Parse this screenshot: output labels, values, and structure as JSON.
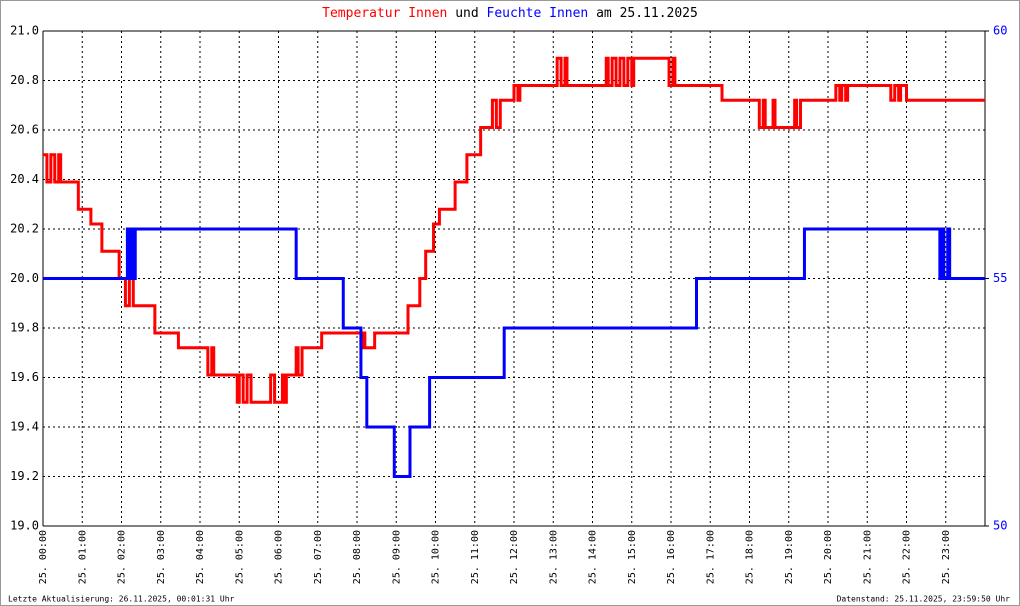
{
  "chart_data": {
    "type": "line",
    "step": "post",
    "title_join": "und",
    "title_suffix": "am 25.11.2025",
    "footer_left": "Letzte Aktualisierung: 26.11.2025, 00:01:31 Uhr",
    "footer_right": "Datenstand: 25.11.2025, 23:59:50 Uhr",
    "grid": true,
    "xlim": [
      0,
      24
    ],
    "xticks": [
      {
        "value": 0,
        "label": "25. 00:00"
      },
      {
        "value": 1,
        "label": "25. 01:00"
      },
      {
        "value": 2,
        "label": "25. 02:00"
      },
      {
        "value": 3,
        "label": "25. 03:00"
      },
      {
        "value": 4,
        "label": "25. 04:00"
      },
      {
        "value": 5,
        "label": "25. 05:00"
      },
      {
        "value": 6,
        "label": "25. 06:00"
      },
      {
        "value": 7,
        "label": "25. 07:00"
      },
      {
        "value": 8,
        "label": "25. 08:00"
      },
      {
        "value": 9,
        "label": "25. 09:00"
      },
      {
        "value": 10,
        "label": "25. 10:00"
      },
      {
        "value": 11,
        "label": "25. 11:00"
      },
      {
        "value": 12,
        "label": "25. 12:00"
      },
      {
        "value": 13,
        "label": "25. 13:00"
      },
      {
        "value": 14,
        "label": "25. 14:00"
      },
      {
        "value": 15,
        "label": "25. 15:00"
      },
      {
        "value": 16,
        "label": "25. 16:00"
      },
      {
        "value": 17,
        "label": "25. 17:00"
      },
      {
        "value": 18,
        "label": "25. 18:00"
      },
      {
        "value": 19,
        "label": "25. 19:00"
      },
      {
        "value": 20,
        "label": "25. 20:00"
      },
      {
        "value": 21,
        "label": "25. 21:00"
      },
      {
        "value": 22,
        "label": "25. 22:00"
      },
      {
        "value": 23,
        "label": "25. 23:00"
      }
    ],
    "ylim": [
      19.0,
      21.0
    ],
    "yticks": [
      {
        "value": 19.0,
        "label": "19.0"
      },
      19.2,
      19.4,
      19.6,
      19.8,
      {
        "value": 20.0,
        "label": "20.0"
      },
      20.2,
      20.4,
      20.6,
      20.8,
      {
        "value": 21.0,
        "label": "21.0"
      }
    ],
    "y2lim": [
      50,
      60
    ],
    "y2ticks": [
      50,
      55,
      60
    ],
    "y2color": "#0000ff",
    "series": [
      {
        "name": "Temperatur Innen",
        "color": "#ff0000",
        "x": [
          0,
          0.1,
          0.2,
          0.3,
          0.4,
          0.45,
          0.9,
          1.22,
          1.5,
          1.94,
          2.1,
          2.2,
          2.3,
          2.85,
          3.45,
          4.2,
          4.3,
          4.35,
          4.95,
          5.0,
          5.1,
          5.2,
          5.3,
          5.8,
          5.9,
          6.1,
          6.15,
          6.2,
          6.45,
          6.5,
          6.6,
          7.1,
          8.1,
          8.15,
          8.2,
          8.45,
          9.3,
          9.6,
          9.75,
          9.95,
          10.1,
          10.5,
          10.8,
          11.15,
          11.45,
          11.55,
          11.65,
          12.0,
          12.1,
          12.15,
          13.1,
          13.2,
          13.3,
          13.35,
          14.35,
          14.4,
          14.5,
          14.6,
          14.7,
          14.8,
          14.9,
          15.0,
          15.05,
          15.95,
          16.05,
          16.1,
          17.3,
          18.25,
          18.35,
          18.4,
          18.6,
          18.65,
          19.15,
          19.2,
          19.3,
          20.2,
          20.3,
          20.35,
          20.45,
          20.5,
          21.6,
          21.7,
          21.8,
          21.85,
          22.0,
          24
        ],
        "values": [
          20.5,
          20.39,
          20.5,
          20.39,
          20.5,
          20.39,
          20.28,
          20.22,
          20.11,
          20.0,
          19.89,
          20.0,
          19.89,
          19.78,
          19.72,
          19.61,
          19.72,
          19.61,
          19.5,
          19.61,
          19.5,
          19.61,
          19.5,
          19.61,
          19.5,
          19.61,
          19.5,
          19.61,
          19.72,
          19.61,
          19.72,
          19.78,
          19.72,
          19.78,
          19.72,
          19.78,
          19.89,
          20.0,
          20.11,
          20.22,
          20.28,
          20.39,
          20.5,
          20.61,
          20.72,
          20.61,
          20.72,
          20.78,
          20.72,
          20.78,
          20.89,
          20.78,
          20.89,
          20.78,
          20.89,
          20.78,
          20.89,
          20.78,
          20.89,
          20.78,
          20.89,
          20.78,
          20.89,
          20.78,
          20.89,
          20.78,
          20.72,
          20.61,
          20.72,
          20.61,
          20.72,
          20.61,
          20.72,
          20.61,
          20.72,
          20.78,
          20.72,
          20.78,
          20.72,
          20.78,
          20.72,
          20.78,
          20.72,
          20.78,
          20.72,
          20.72
        ]
      },
      {
        "name": "Feuchte Innen",
        "color": "#0000ff",
        "axis": "y2",
        "x": [
          0,
          2.15,
          2.2,
          2.25,
          2.3,
          2.35,
          6.45,
          7.65,
          8.1,
          8.25,
          8.95,
          9.35,
          9.85,
          11.75,
          16.65,
          19.4,
          22.85,
          22.9,
          22.95,
          23.05,
          23.1,
          24
        ],
        "values": [
          55,
          56,
          55,
          56,
          55,
          56,
          55,
          54,
          53,
          52,
          51,
          52,
          53,
          54,
          55,
          56,
          55,
          56,
          55,
          56,
          55,
          55
        ]
      }
    ]
  }
}
